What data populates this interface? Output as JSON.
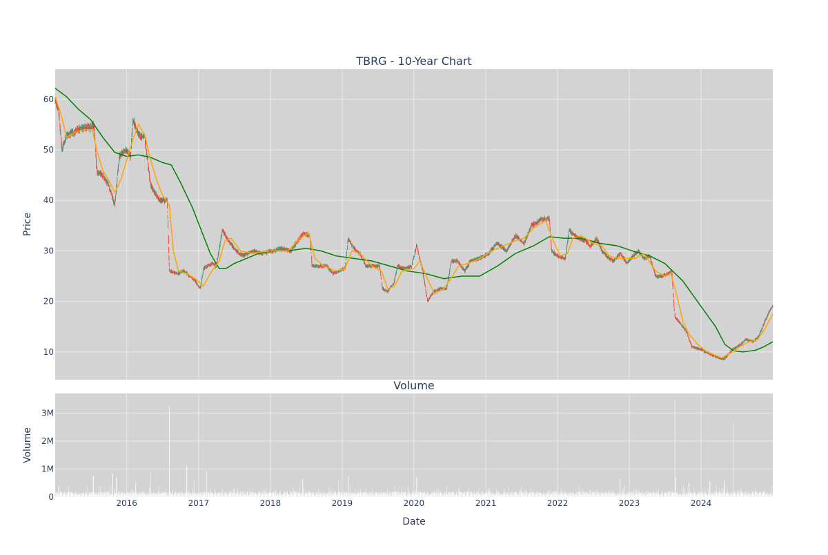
{
  "chart_data": [
    {
      "type": "candlestick",
      "title": "TBRG - 10-Year Chart",
      "xlabel": "",
      "ylabel": "Price",
      "ylim": [
        4.5,
        66
      ],
      "xlim": [
        "2015-01-02",
        "2024-12-31"
      ],
      "x_tick_labels": [
        "2016",
        "2017",
        "2018",
        "2019",
        "2020",
        "2021",
        "2022",
        "2023",
        "2024"
      ],
      "y_ticks": [
        10,
        20,
        30,
        40,
        50,
        60
      ],
      "y_tick_labels": [
        "10",
        "20",
        "30",
        "40",
        "50",
        "60"
      ],
      "grid": true,
      "legend": "none",
      "colors": {
        "up": "#3d9970",
        "down": "#ff4136",
        "ma_short": "#ffa500",
        "ma_long": "#008000",
        "background": "#d3d3d3"
      },
      "price_path": [
        [
          "2015-01-02",
          60
        ],
        [
          "2015-01-20",
          57.5
        ],
        [
          "2015-02-05",
          50
        ],
        [
          "2015-03-01",
          53
        ],
        [
          "2015-04-10",
          53.5
        ],
        [
          "2015-05-20",
          54.5
        ],
        [
          "2015-07-01",
          54.5
        ],
        [
          "2015-07-20",
          55
        ],
        [
          "2015-08-01",
          45.5
        ],
        [
          "2015-09-01",
          45
        ],
        [
          "2015-10-01",
          43
        ],
        [
          "2015-11-01",
          39
        ],
        [
          "2015-11-25",
          49
        ],
        [
          "2016-01-01",
          50
        ],
        [
          "2016-01-20",
          48.5
        ],
        [
          "2016-02-01",
          56
        ],
        [
          "2016-03-01",
          53
        ],
        [
          "2016-04-01",
          52.5
        ],
        [
          "2016-05-01",
          43
        ],
        [
          "2016-06-15",
          40
        ],
        [
          "2016-07-25",
          40
        ],
        [
          "2016-08-05",
          26
        ],
        [
          "2016-09-15",
          25.5
        ],
        [
          "2016-10-20",
          26
        ],
        [
          "2016-11-15",
          25
        ],
        [
          "2016-12-15",
          24
        ],
        [
          "2017-01-10",
          22.5
        ],
        [
          "2017-01-25",
          26.5
        ],
        [
          "2017-03-10",
          27.5
        ],
        [
          "2017-04-01",
          27
        ],
        [
          "2017-05-01",
          34
        ],
        [
          "2017-06-01",
          32
        ],
        [
          "2017-07-10",
          30
        ],
        [
          "2017-08-15",
          29
        ],
        [
          "2017-10-01",
          30
        ],
        [
          "2017-11-15",
          29.5
        ],
        [
          "2018-01-15",
          30
        ],
        [
          "2018-03-01",
          30.5
        ],
        [
          "2018-04-15",
          30
        ],
        [
          "2018-06-15",
          33.5
        ],
        [
          "2018-07-20",
          33
        ],
        [
          "2018-08-01",
          27
        ],
        [
          "2018-09-15",
          27
        ],
        [
          "2018-10-15",
          27
        ],
        [
          "2018-11-15",
          25.5
        ],
        [
          "2019-01-15",
          26.5
        ],
        [
          "2019-02-01",
          32.5
        ],
        [
          "2019-03-01",
          30.5
        ],
        [
          "2019-04-01",
          29.5
        ],
        [
          "2019-05-01",
          27
        ],
        [
          "2019-06-15",
          27
        ],
        [
          "2019-07-10",
          27
        ],
        [
          "2019-07-25",
          22.5
        ],
        [
          "2019-08-20",
          22
        ],
        [
          "2019-09-20",
          23.5
        ],
        [
          "2019-10-10",
          27
        ],
        [
          "2019-11-15",
          26.5
        ],
        [
          "2019-12-20",
          27
        ],
        [
          "2020-01-15",
          31
        ],
        [
          "2020-02-15",
          26
        ],
        [
          "2020-03-10",
          20
        ],
        [
          "2020-04-10",
          22
        ],
        [
          "2020-05-15",
          22.5
        ],
        [
          "2020-06-15",
          22.5
        ],
        [
          "2020-07-10",
          28
        ],
        [
          "2020-08-10",
          28
        ],
        [
          "2020-09-15",
          26
        ],
        [
          "2020-10-15",
          28
        ],
        [
          "2020-12-01",
          28.5
        ],
        [
          "2021-01-15",
          29.5
        ],
        [
          "2021-03-01",
          31.5
        ],
        [
          "2021-04-15",
          30
        ],
        [
          "2021-06-01",
          33
        ],
        [
          "2021-07-15",
          31.5
        ],
        [
          "2021-08-20",
          35
        ],
        [
          "2021-10-01",
          36
        ],
        [
          "2021-11-20",
          36.5
        ],
        [
          "2021-12-01",
          30
        ],
        [
          "2022-01-01",
          29
        ],
        [
          "2022-02-10",
          28.5
        ],
        [
          "2022-03-01",
          34
        ],
        [
          "2022-04-15",
          32.5
        ],
        [
          "2022-05-20",
          32
        ],
        [
          "2022-06-15",
          31
        ],
        [
          "2022-07-20",
          32.5
        ],
        [
          "2022-08-15",
          30
        ],
        [
          "2022-09-20",
          28.5
        ],
        [
          "2022-10-15",
          28
        ],
        [
          "2022-11-15",
          29.5
        ],
        [
          "2022-12-20",
          27.5
        ],
        [
          "2023-01-20",
          29
        ],
        [
          "2023-02-15",
          30
        ],
        [
          "2023-03-15",
          28.5
        ],
        [
          "2023-04-15",
          29
        ],
        [
          "2023-05-15",
          25
        ],
        [
          "2023-06-15",
          25
        ],
        [
          "2023-07-20",
          25.5
        ],
        [
          "2023-08-05",
          26
        ],
        [
          "2023-08-20",
          17
        ],
        [
          "2023-09-20",
          15.5
        ],
        [
          "2023-10-20",
          14
        ],
        [
          "2023-11-15",
          11
        ],
        [
          "2023-12-31",
          10.5
        ],
        [
          "2024-01-20",
          10
        ],
        [
          "2024-02-20",
          9.5
        ],
        [
          "2024-03-20",
          9
        ],
        [
          "2024-04-25",
          8.5
        ],
        [
          "2024-06-10",
          10.5
        ],
        [
          "2024-07-20",
          11.5
        ],
        [
          "2024-08-15",
          12.5
        ],
        [
          "2024-09-20",
          12
        ],
        [
          "2024-10-20",
          13
        ],
        [
          "2024-11-20",
          16
        ],
        [
          "2024-12-20",
          18.5
        ],
        [
          "2024-12-31",
          19
        ]
      ],
      "ma_short_path": [
        [
          "2015-01-02",
          60.5
        ],
        [
          "2015-02-01",
          57
        ],
        [
          "2015-03-01",
          52.5
        ],
        [
          "2015-04-15",
          53.5
        ],
        [
          "2015-06-01",
          54
        ],
        [
          "2015-07-10",
          54
        ],
        [
          "2015-08-01",
          50
        ],
        [
          "2015-09-01",
          46
        ],
        [
          "2015-10-01",
          44
        ],
        [
          "2015-11-01",
          41.5
        ],
        [
          "2015-12-01",
          44
        ],
        [
          "2016-01-01",
          48
        ],
        [
          "2016-02-01",
          52
        ],
        [
          "2016-03-01",
          55
        ],
        [
          "2016-04-01",
          53
        ],
        [
          "2016-05-01",
          48
        ],
        [
          "2016-06-01",
          44
        ],
        [
          "2016-07-01",
          41
        ],
        [
          "2016-08-05",
          39
        ],
        [
          "2016-08-25",
          30
        ],
        [
          "2016-09-20",
          26
        ],
        [
          "2016-11-01",
          25.5
        ],
        [
          "2016-12-15",
          24.5
        ],
        [
          "2017-01-25",
          23
        ],
        [
          "2017-03-01",
          25.5
        ],
        [
          "2017-04-15",
          28
        ],
        [
          "2017-05-15",
          32
        ],
        [
          "2017-06-15",
          32.5
        ],
        [
          "2017-08-01",
          30
        ],
        [
          "2017-10-01",
          29.5
        ],
        [
          "2018-01-01",
          30
        ],
        [
          "2018-04-01",
          30
        ],
        [
          "2018-06-01",
          32.5
        ],
        [
          "2018-07-15",
          33.5
        ],
        [
          "2018-08-15",
          28.5
        ],
        [
          "2018-10-01",
          27
        ],
        [
          "2018-12-01",
          26
        ],
        [
          "2019-01-15",
          26.5
        ],
        [
          "2019-02-20",
          30
        ],
        [
          "2019-04-01",
          29.5
        ],
        [
          "2019-06-01",
          27
        ],
        [
          "2019-07-20",
          26
        ],
        [
          "2019-08-20",
          22.5
        ],
        [
          "2019-09-25",
          23
        ],
        [
          "2019-11-01",
          26
        ],
        [
          "2020-01-01",
          26.5
        ],
        [
          "2020-02-01",
          28
        ],
        [
          "2020-03-15",
          24
        ],
        [
          "2020-04-15",
          21.5
        ],
        [
          "2020-06-01",
          22.5
        ],
        [
          "2020-07-15",
          25
        ],
        [
          "2020-08-15",
          27
        ],
        [
          "2020-10-01",
          27.5
        ],
        [
          "2020-12-01",
          28.5
        ],
        [
          "2021-02-01",
          30
        ],
        [
          "2021-04-01",
          31
        ],
        [
          "2021-06-01",
          32
        ],
        [
          "2021-07-15",
          32.5
        ],
        [
          "2021-09-01",
          34.5
        ],
        [
          "2021-11-01",
          36
        ],
        [
          "2021-12-10",
          32
        ],
        [
          "2022-01-15",
          29
        ],
        [
          "2022-02-20",
          29.5
        ],
        [
          "2022-03-20",
          32.5
        ],
        [
          "2022-05-01",
          33
        ],
        [
          "2022-07-01",
          31.5
        ],
        [
          "2022-08-15",
          31
        ],
        [
          "2022-09-20",
          29
        ],
        [
          "2022-11-01",
          28.5
        ],
        [
          "2022-12-20",
          28.5
        ],
        [
          "2023-02-01",
          28.5
        ],
        [
          "2023-03-15",
          29.5
        ],
        [
          "2023-05-15",
          26
        ],
        [
          "2023-07-01",
          25
        ],
        [
          "2023-08-01",
          25.5
        ],
        [
          "2023-09-01",
          21
        ],
        [
          "2023-10-01",
          16
        ],
        [
          "2023-11-01",
          13.5
        ],
        [
          "2023-12-15",
          11.5
        ],
        [
          "2024-02-01",
          10
        ],
        [
          "2024-04-15",
          8.8
        ],
        [
          "2024-06-01",
          9.8
        ],
        [
          "2024-07-15",
          11
        ],
        [
          "2024-09-01",
          12
        ],
        [
          "2024-10-15",
          12.5
        ],
        [
          "2024-11-20",
          14.5
        ],
        [
          "2024-12-31",
          17.5
        ]
      ],
      "ma_long_path": [
        [
          "2015-01-02",
          62.2
        ],
        [
          "2015-03-01",
          60.5
        ],
        [
          "2015-05-01",
          58
        ],
        [
          "2015-07-01",
          56
        ],
        [
          "2015-09-01",
          52.5
        ],
        [
          "2015-11-01",
          49.5
        ],
        [
          "2016-01-01",
          48.7
        ],
        [
          "2016-03-01",
          49
        ],
        [
          "2016-05-01",
          48.5
        ],
        [
          "2016-07-01",
          47.5
        ],
        [
          "2016-08-15",
          47
        ],
        [
          "2016-10-01",
          43.5
        ],
        [
          "2016-12-01",
          38.5
        ],
        [
          "2017-01-15",
          34
        ],
        [
          "2017-03-01",
          29.5
        ],
        [
          "2017-04-15",
          26.5
        ],
        [
          "2017-05-20",
          26.5
        ],
        [
          "2017-07-01",
          27.5
        ],
        [
          "2017-09-01",
          28.5
        ],
        [
          "2017-11-01",
          29.5
        ],
        [
          "2018-01-01",
          30
        ],
        [
          "2018-04-01",
          30
        ],
        [
          "2018-07-01",
          30.5
        ],
        [
          "2018-09-15",
          30
        ],
        [
          "2018-12-01",
          29
        ],
        [
          "2019-03-01",
          28.5
        ],
        [
          "2019-06-01",
          28
        ],
        [
          "2019-09-01",
          27
        ],
        [
          "2019-12-01",
          26
        ],
        [
          "2020-03-01",
          25.5
        ],
        [
          "2020-06-01",
          24.5
        ],
        [
          "2020-09-01",
          25
        ],
        [
          "2020-12-01",
          25
        ],
        [
          "2021-03-01",
          27
        ],
        [
          "2021-06-01",
          29.5
        ],
        [
          "2021-09-01",
          31
        ],
        [
          "2021-11-20",
          32.8
        ],
        [
          "2022-02-01",
          32.5
        ],
        [
          "2022-05-01",
          32.5
        ],
        [
          "2022-08-01",
          31.5
        ],
        [
          "2022-11-01",
          31
        ],
        [
          "2023-01-15",
          30
        ],
        [
          "2023-04-15",
          29
        ],
        [
          "2023-07-01",
          27.5
        ],
        [
          "2023-10-01",
          24
        ],
        [
          "2024-01-01",
          19
        ],
        [
          "2024-03-15",
          15
        ],
        [
          "2024-05-01",
          11.5
        ],
        [
          "2024-06-15",
          10.2
        ],
        [
          "2024-08-01",
          10
        ],
        [
          "2024-10-01",
          10.3
        ],
        [
          "2024-11-15",
          11
        ],
        [
          "2024-12-31",
          12
        ]
      ]
    },
    {
      "type": "bar",
      "title": "Volume",
      "xlabel": "Date",
      "ylabel": "Volume",
      "ylim": [
        0,
        3700000
      ],
      "xlim": [
        "2015-01-02",
        "2024-12-31"
      ],
      "x_tick_labels": [
        "2016",
        "2017",
        "2018",
        "2019",
        "2020",
        "2021",
        "2022",
        "2023",
        "2024"
      ],
      "y_ticks": [
        0,
        1000000,
        2000000,
        3000000
      ],
      "y_tick_labels": [
        "0",
        "1M",
        "2M",
        "3M"
      ],
      "grid": true,
      "legend": "none",
      "colors": {
        "bar": "#ffffff",
        "background": "#d3d3d3"
      },
      "spikes": [
        [
          "2015-01-20",
          400000
        ],
        [
          "2015-07-15",
          750000
        ],
        [
          "2015-10-20",
          850000
        ],
        [
          "2015-11-10",
          700000
        ],
        [
          "2016-02-15",
          500000
        ],
        [
          "2016-05-01",
          850000
        ],
        [
          "2016-08-05",
          3250000
        ],
        [
          "2016-11-01",
          1100000
        ],
        [
          "2016-12-10",
          600000
        ],
        [
          "2017-02-10",
          950000
        ],
        [
          "2018-06-15",
          650000
        ],
        [
          "2018-12-15",
          600000
        ],
        [
          "2019-02-01",
          750000
        ],
        [
          "2020-01-15",
          700000
        ],
        [
          "2021-01-15",
          300000
        ],
        [
          "2022-11-15",
          650000
        ],
        [
          "2023-08-20",
          3500000
        ],
        [
          "2023-08-25",
          700000
        ],
        [
          "2023-11-01",
          500000
        ],
        [
          "2024-02-15",
          550000
        ],
        [
          "2024-05-01",
          600000
        ],
        [
          "2024-06-15",
          2650000
        ]
      ]
    }
  ]
}
